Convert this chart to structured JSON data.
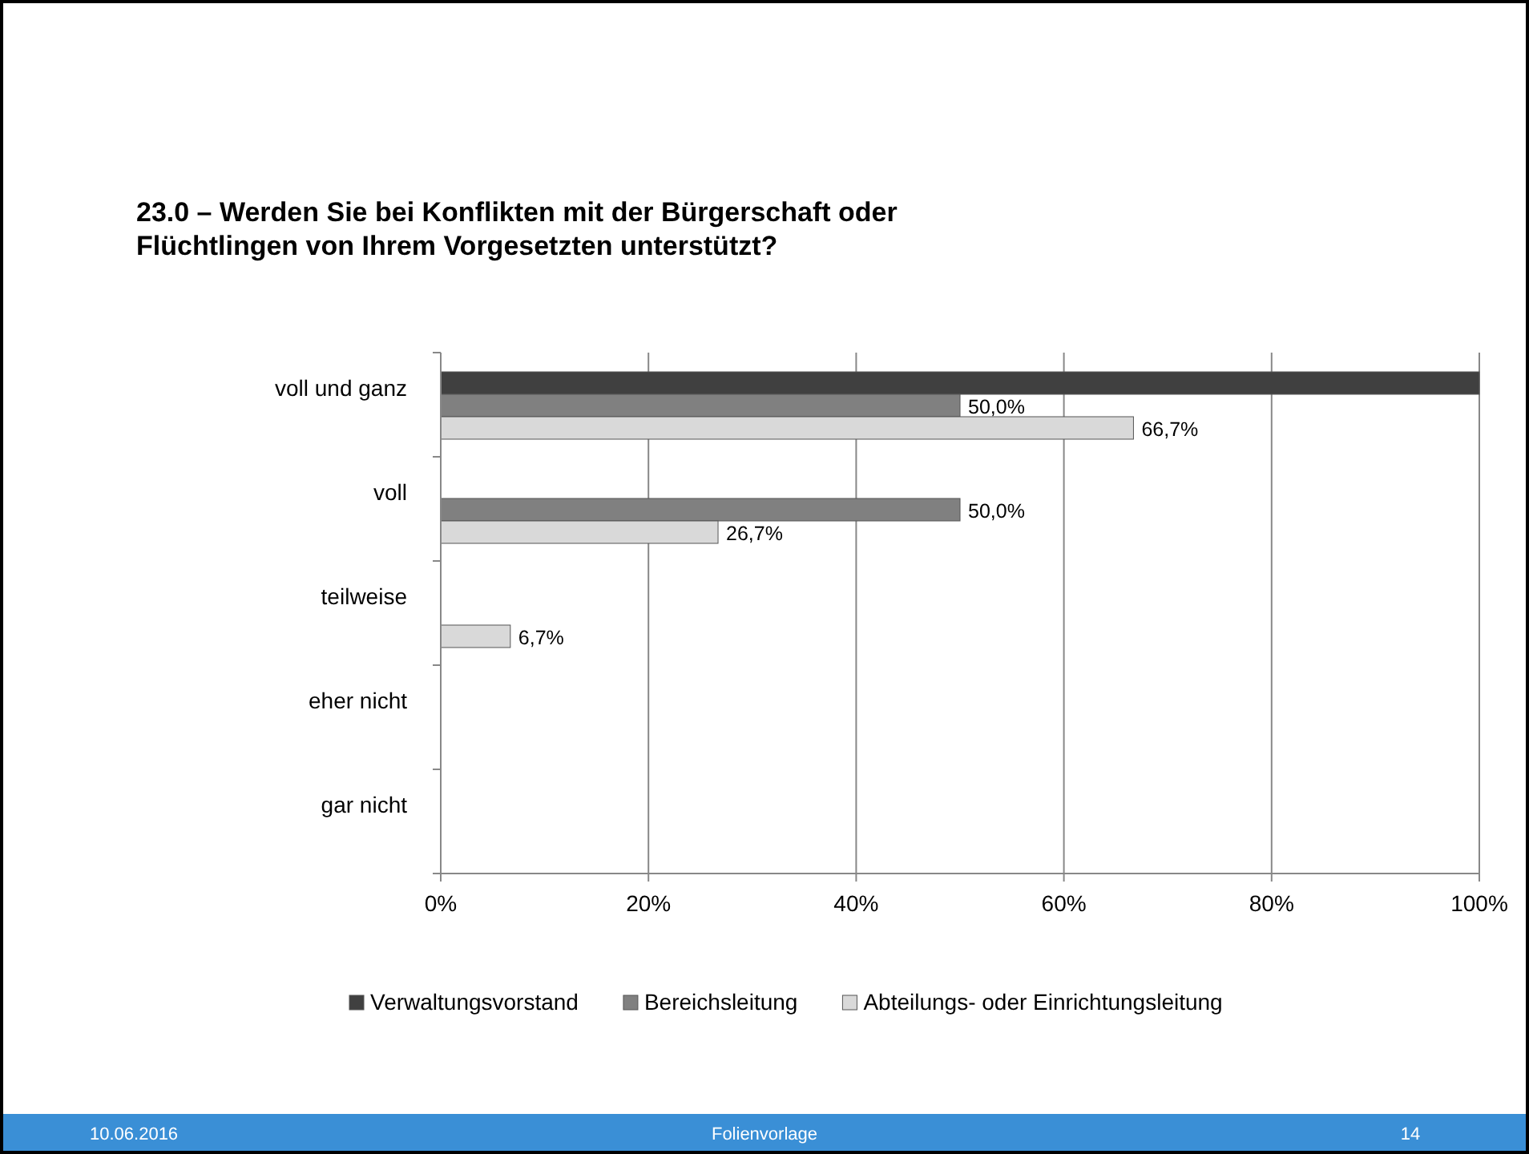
{
  "chart_data": {
    "type": "bar",
    "orientation": "horizontal",
    "title": "23.0 – Werden Sie bei Konflikten mit der Bürgerschaft oder Flüchtlingen von Ihrem Vorgesetzten unterstützt?",
    "categories": [
      "voll und ganz",
      "voll",
      "teilweise",
      "eher nicht",
      "gar nicht"
    ],
    "series": [
      {
        "name": "Verwaltungsvorstand",
        "color": "#404040",
        "values": [
          100,
          0,
          0,
          0,
          0
        ],
        "value_labels": [
          null,
          null,
          null,
          null,
          null
        ]
      },
      {
        "name": "Bereichsleitung",
        "color": "#808080",
        "values": [
          50,
          50,
          0,
          0,
          0
        ],
        "value_labels": [
          "50,0%",
          "50,0%",
          null,
          null,
          null
        ]
      },
      {
        "name": "Abteilungs- oder Einrichtungsleitung",
        "color": "#d9d9d9",
        "values": [
          66.7,
          26.7,
          6.7,
          0,
          0
        ],
        "value_labels": [
          "66,7%",
          "26,7%",
          "6,7%",
          null,
          null
        ]
      }
    ],
    "xlim": [
      0,
      100
    ],
    "xticks": [
      {
        "value": 0,
        "label": "0%"
      },
      {
        "value": 20,
        "label": "20%"
      },
      {
        "value": 40,
        "label": "40%"
      },
      {
        "value": 60,
        "label": "60%"
      },
      {
        "value": 80,
        "label": "80%"
      },
      {
        "value": 100,
        "label": "100%"
      }
    ],
    "grid": "x",
    "legend": "bottom",
    "annotations": [
      "10.06.2016",
      "Folienvorlage",
      "14"
    ]
  }
}
